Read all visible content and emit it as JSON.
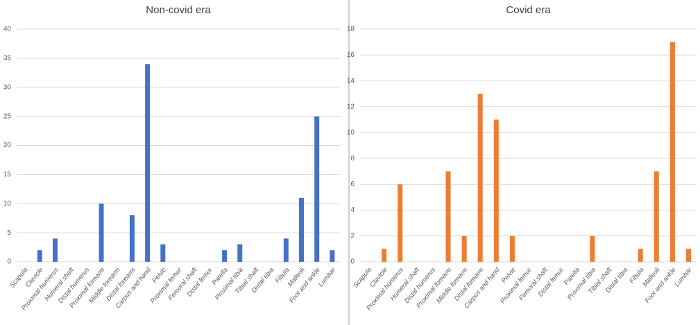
{
  "chart_data": [
    {
      "type": "bar",
      "title": "Non-covid era",
      "categories": [
        "Scapula",
        "Clavicle",
        "Proximal humerus",
        "Humeral shaft",
        "Distal humerus",
        "Proximal forearm",
        "Middle forearm",
        "Distal forearm",
        "Carpus and hand",
        "Pelvic",
        "Proximal femur",
        "Femoral shaft",
        "Distal femur",
        "Patella",
        "Proximal tibia",
        "Tibial shaft",
        "Distal tibia",
        "Fibula",
        "Malleoli",
        "Foot and ankle",
        "Lumbar"
      ],
      "values": [
        0,
        2,
        4,
        0,
        0,
        10,
        0,
        8,
        34,
        3,
        0,
        0,
        0,
        2,
        3,
        0,
        0,
        4,
        11,
        25,
        2
      ],
      "color": "#4472c4",
      "ylim": [
        0,
        40
      ],
      "yticks": [
        0,
        5,
        10,
        15,
        20,
        25,
        30,
        35,
        40
      ],
      "grid": true
    },
    {
      "type": "bar",
      "title": "Covid era",
      "categories": [
        "Scapula",
        "Clavicle",
        "Proximal humerus",
        "Humeral shaft",
        "Distal humerus",
        "Proximal forearm",
        "Middle forearm",
        "Distal forearm",
        "Carpus and hand",
        "Pelvic",
        "Proximal femur",
        "Femoral shaft",
        "Distal femur",
        "Patella",
        "Proximal tibia",
        "Tibial shaft",
        "Distal tibia",
        "Fibula",
        "Malleoli",
        "Foot and ankle",
        "Lumbar"
      ],
      "values": [
        0,
        1,
        6,
        0,
        0,
        7,
        2,
        13,
        11,
        2,
        0,
        0,
        0,
        0,
        2,
        0,
        0,
        1,
        7,
        17,
        1
      ],
      "color": "#ed7d31",
      "ylim": [
        0,
        18
      ],
      "yticks": [
        0,
        2,
        4,
        6,
        8,
        10,
        12,
        14,
        16,
        18
      ],
      "grid": true
    }
  ]
}
